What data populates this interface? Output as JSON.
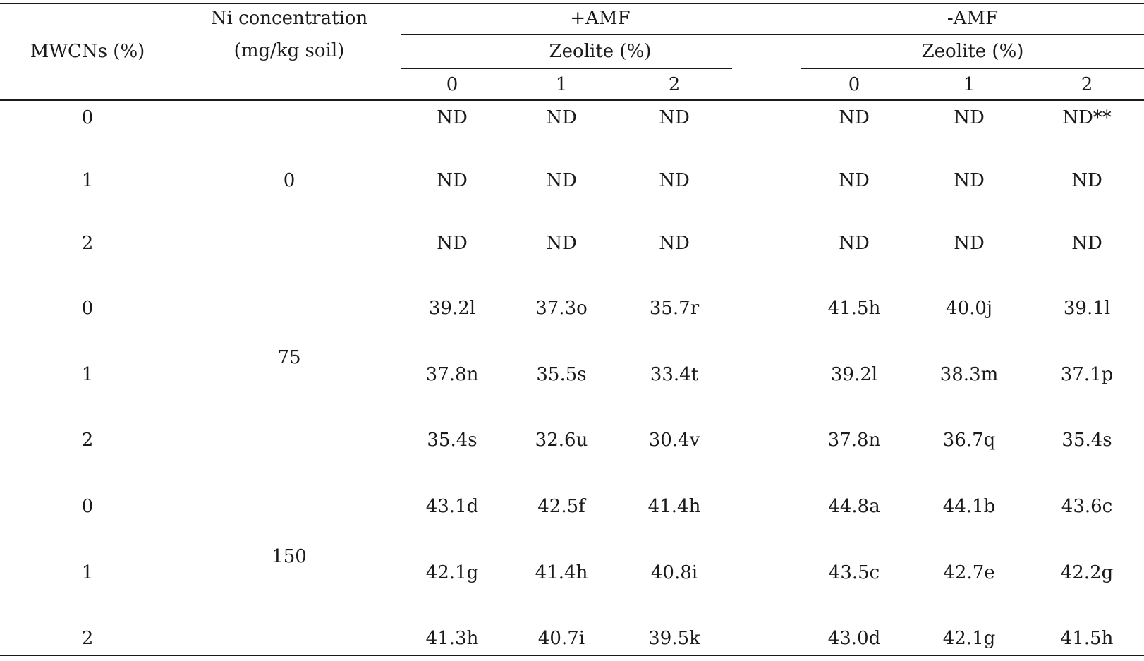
{
  "header": {
    "mwcns_label": "MWCNs (%)",
    "ni_label_line1": "Ni concentration",
    "ni_label_line2": "(mg/kg soil)",
    "plus_amf": "+AMF",
    "minus_amf": "-AMF",
    "zeolite_label": "Zeolite (%)",
    "zeolite_levels": [
      "0",
      "1",
      "2",
      "0",
      "1",
      "2"
    ]
  },
  "groups": [
    {
      "ni": "0",
      "rows": [
        {
          "mwcns": "0",
          "cells": [
            "ND",
            "ND",
            "ND",
            "ND",
            "ND",
            "ND**"
          ]
        },
        {
          "mwcns": "1",
          "cells": [
            "ND",
            "ND",
            "ND",
            "ND",
            "ND",
            "ND"
          ]
        },
        {
          "mwcns": "2",
          "cells": [
            "ND",
            "ND",
            "ND",
            "ND",
            "ND",
            "ND"
          ]
        }
      ]
    },
    {
      "ni": "75",
      "rows": [
        {
          "mwcns": "0",
          "cells": [
            "39.2l",
            "37.3o",
            "35.7r",
            "41.5h",
            "40.0j",
            "39.1l"
          ]
        },
        {
          "mwcns": "1",
          "cells": [
            "37.8n",
            "35.5s",
            "33.4t",
            "39.2l",
            "38.3m",
            "37.1p"
          ]
        },
        {
          "mwcns": "2",
          "cells": [
            "35.4s",
            "32.6u",
            "30.4v",
            "37.8n",
            "36.7q",
            "35.4s"
          ]
        }
      ]
    },
    {
      "ni": "150",
      "rows": [
        {
          "mwcns": "0",
          "cells": [
            "43.1d",
            "42.5f",
            "41.4h",
            "44.8a",
            "44.1b",
            "43.6c"
          ]
        },
        {
          "mwcns": "1",
          "cells": [
            "42.1g",
            "41.4h",
            "40.8i",
            "43.5c",
            "42.7e",
            "42.2g"
          ]
        },
        {
          "mwcns": "2",
          "cells": [
            "41.3h",
            "40.7i",
            "39.5k",
            "43.0d",
            "42.1g",
            "41.5h"
          ]
        }
      ]
    }
  ]
}
